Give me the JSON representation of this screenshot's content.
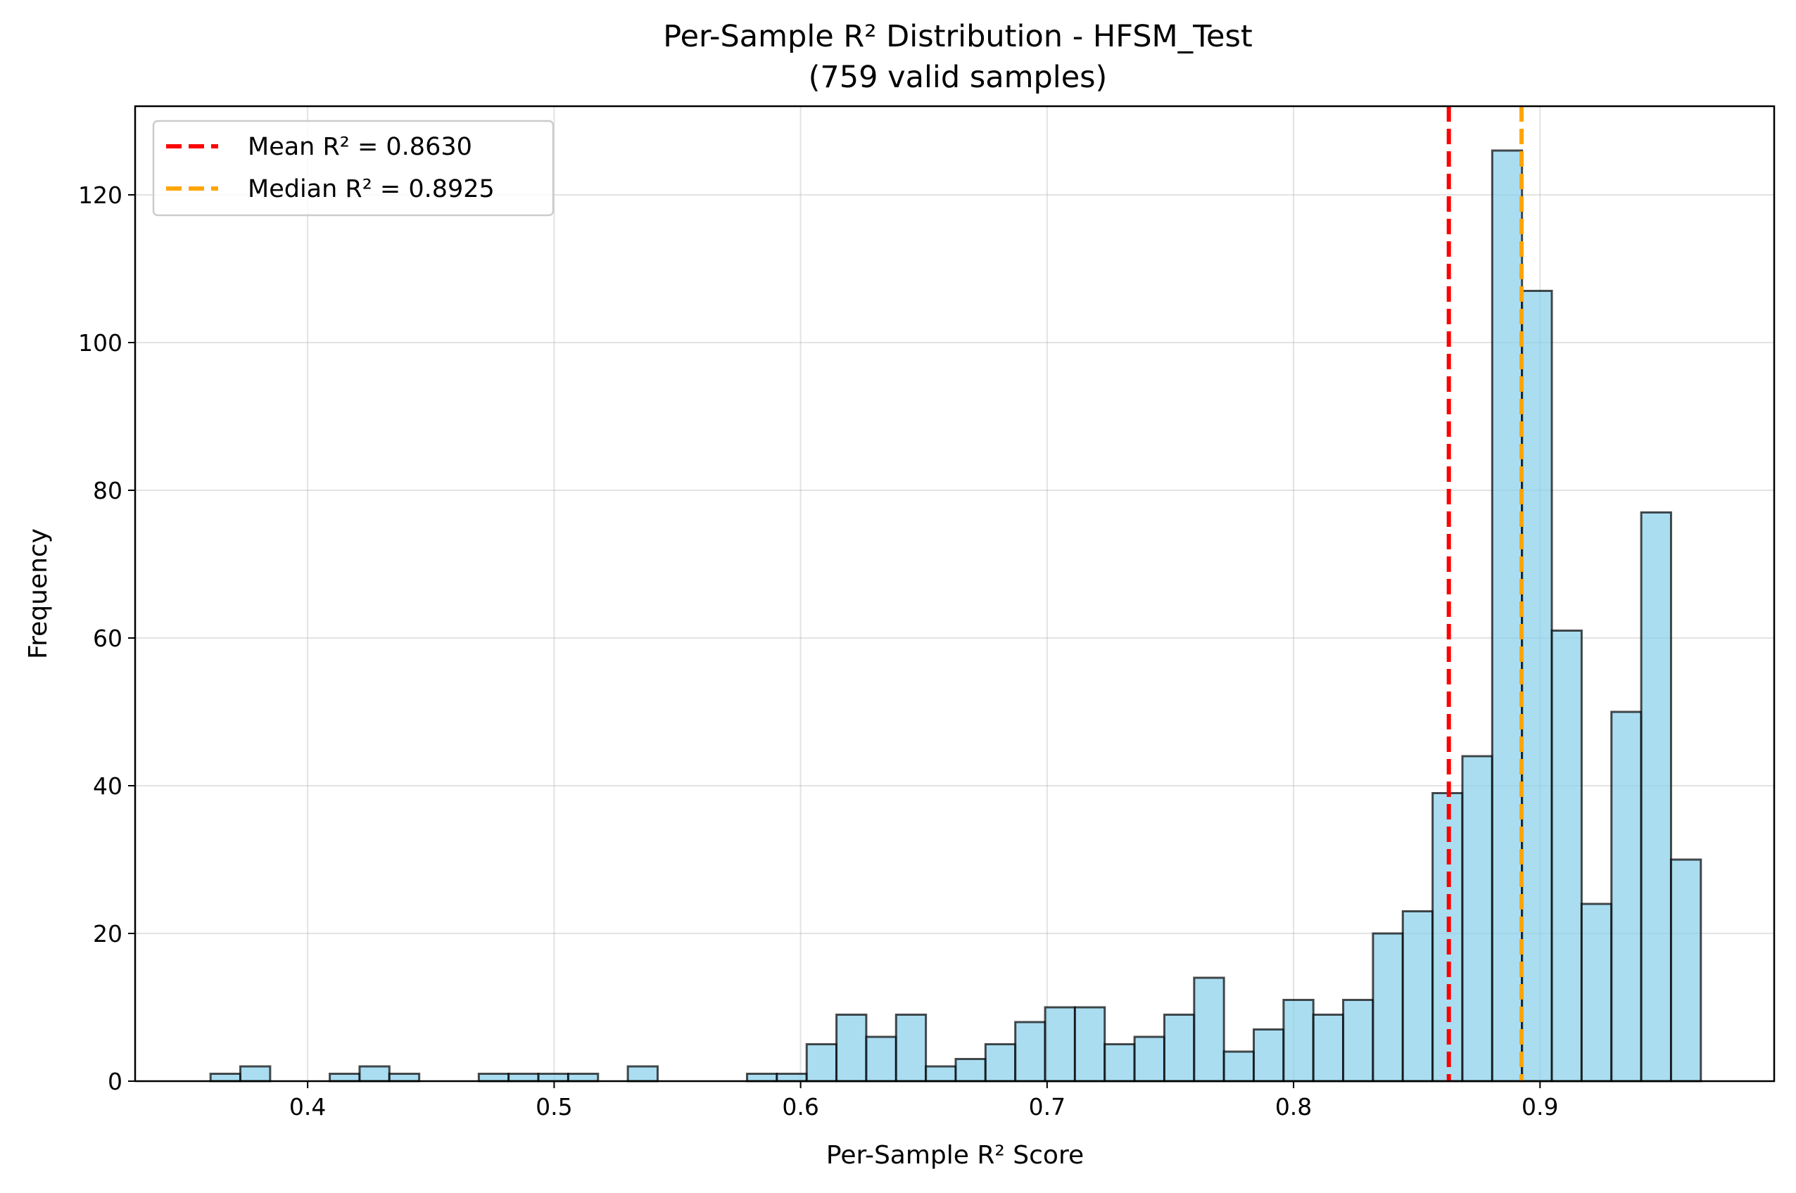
{
  "chart_data": {
    "type": "bar",
    "title_line1": "Per-Sample R² Distribution - HFSM_Test",
    "title_line2": "(759 valid samples)",
    "xlabel": "Per-Sample R² Score",
    "ylabel": "Frequency",
    "xlim": [
      0.33,
      0.995
    ],
    "ylim": [
      0,
      132
    ],
    "x_ticks": [
      0.4,
      0.5,
      0.6,
      0.7,
      0.8,
      0.9
    ],
    "x_tick_labels": [
      "0.4",
      "0.5",
      "0.6",
      "0.7",
      "0.8",
      "0.9"
    ],
    "y_ticks": [
      0,
      20,
      40,
      60,
      80,
      100,
      120
    ],
    "y_tick_labels": [
      "0",
      "20",
      "40",
      "60",
      "80",
      "100",
      "120"
    ],
    "grid": true,
    "bar_color": "#87ceeb",
    "bin_start": 0.3606,
    "bin_width": 0.012093,
    "values": [
      1,
      2,
      0,
      0,
      1,
      2,
      1,
      0,
      0,
      1,
      1,
      1,
      1,
      0,
      2,
      0,
      0,
      0,
      1,
      1,
      5,
      9,
      6,
      9,
      2,
      3,
      5,
      8,
      10,
      10,
      5,
      6,
      9,
      14,
      4,
      7,
      11,
      9,
      11,
      20,
      23,
      39,
      44,
      126,
      107,
      61,
      24,
      50,
      77,
      30
    ],
    "reference_lines": [
      {
        "name": "Mean R² = 0.8630",
        "x": 0.863,
        "color": "#ff0000"
      },
      {
        "name": "Median R² = 0.8925",
        "x": 0.8925,
        "color": "#ffa500"
      }
    ],
    "legend_position": "upper left"
  }
}
